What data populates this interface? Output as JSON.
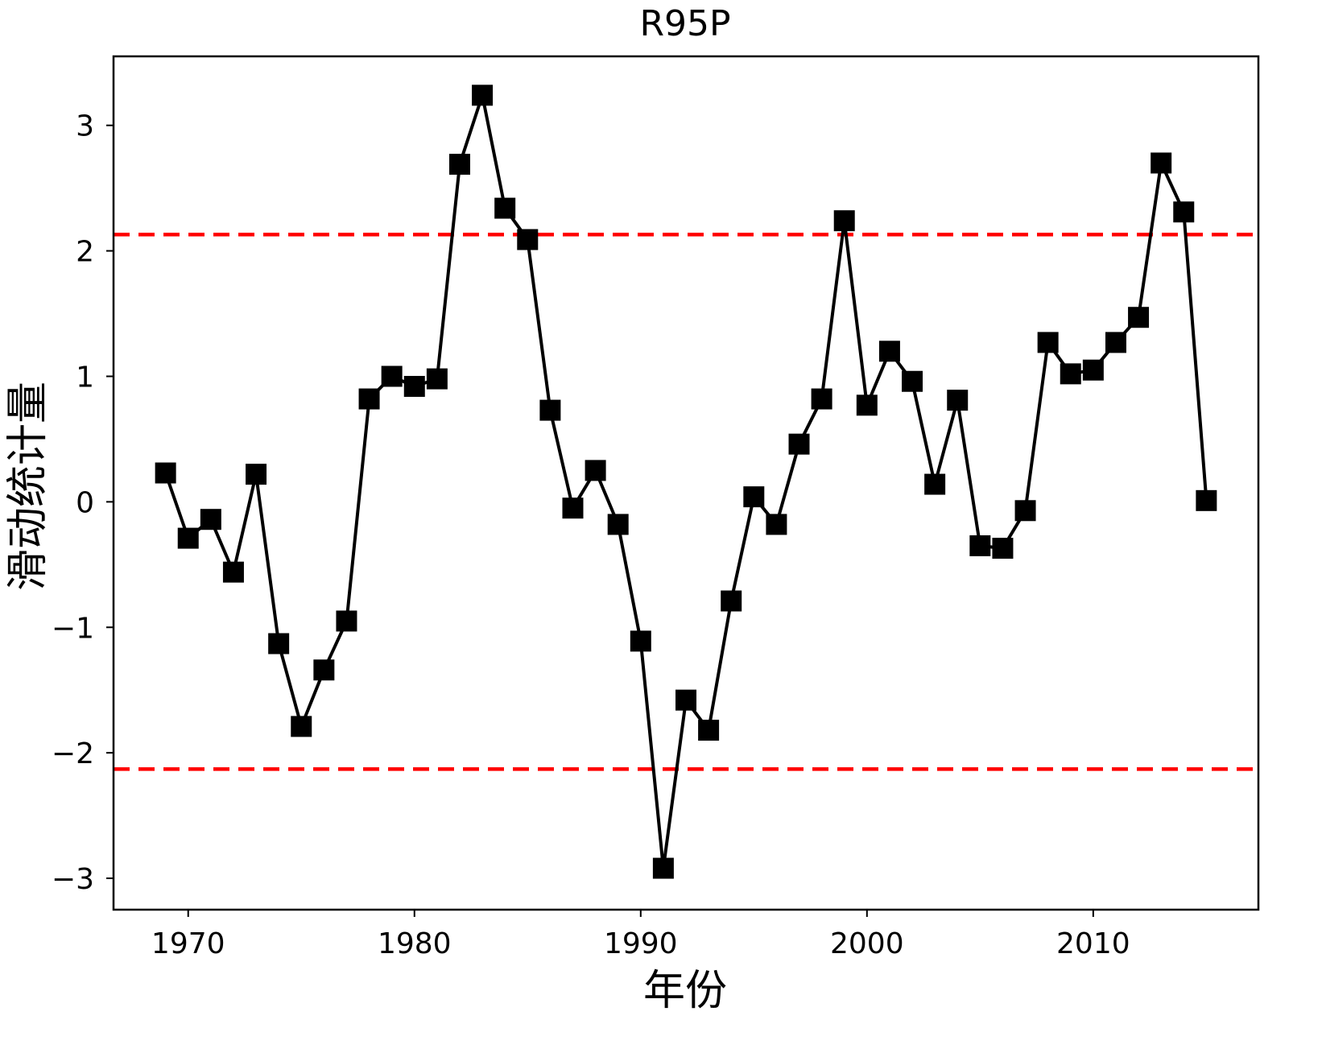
{
  "chart_data": {
    "type": "line",
    "title": "R95P",
    "xlabel": "年份",
    "ylabel": "滑动统计量",
    "xlim": [
      1966.7,
      2017.3
    ],
    "ylim": [
      -3.25,
      3.55
    ],
    "xticks": [
      1970,
      1980,
      1990,
      2000,
      2010
    ],
    "xtick_labels": [
      "1970",
      "1980",
      "1990",
      "2000",
      "2010"
    ],
    "yticks": [
      -3,
      -2,
      -1,
      0,
      1,
      2,
      3
    ],
    "ytick_labels": [
      "−3",
      "−2",
      "−1",
      "0",
      "1",
      "2",
      "3"
    ],
    "grid": false,
    "colors": {
      "series": "#000000",
      "threshold": "#ff0000"
    },
    "series": [
      {
        "marker": "square",
        "x": [
          1969,
          1970,
          1971,
          1972,
          1973,
          1974,
          1975,
          1976,
          1977,
          1978,
          1979,
          1980,
          1981,
          1982,
          1983,
          1984,
          1985,
          1986,
          1987,
          1988,
          1989,
          1990,
          1991,
          1992,
          1993,
          1994,
          1995,
          1996,
          1997,
          1998,
          1999,
          2000,
          2001,
          2002,
          2003,
          2004,
          2005,
          2006,
          2007,
          2008,
          2009,
          2010,
          2011,
          2012,
          2013,
          2014,
          2015
        ],
        "y": [
          0.23,
          -0.29,
          -0.14,
          -0.56,
          0.22,
          -1.13,
          -1.79,
          -1.34,
          -0.95,
          0.82,
          1.0,
          0.92,
          0.98,
          2.69,
          3.24,
          2.34,
          2.09,
          0.73,
          -0.05,
          0.25,
          -0.18,
          -1.11,
          -2.92,
          -1.58,
          -1.82,
          -0.79,
          0.04,
          -0.18,
          0.46,
          0.82,
          2.24,
          0.77,
          1.2,
          0.96,
          0.14,
          0.81,
          -0.35,
          -0.37,
          -0.07,
          1.27,
          1.02,
          1.05,
          1.27,
          1.47,
          2.7,
          2.31,
          0.01
        ]
      }
    ],
    "thresholds": [
      2.13,
      -2.13
    ],
    "threshold_style": "dashed"
  }
}
